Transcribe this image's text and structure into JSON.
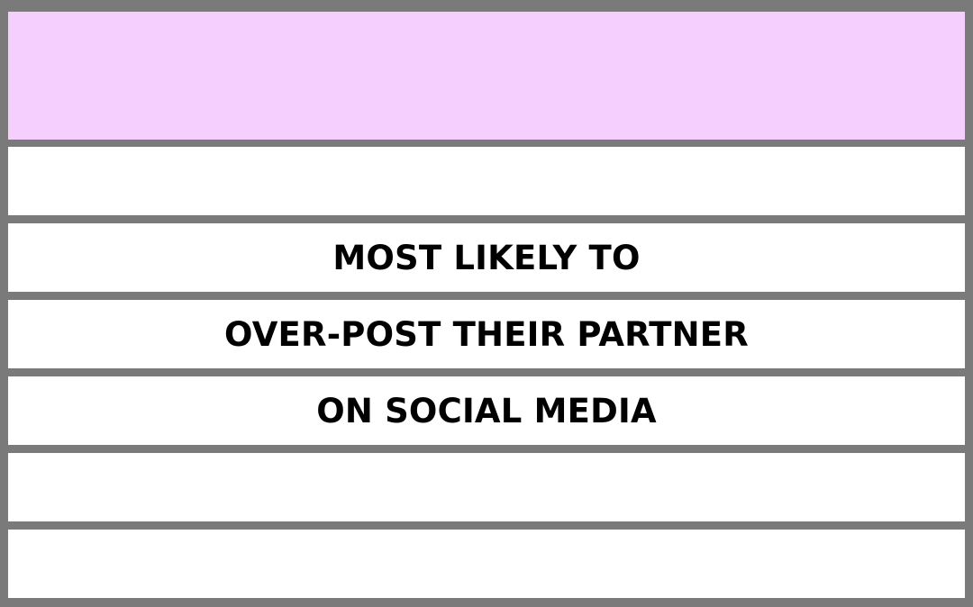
{
  "colors": {
    "border": "#7a7a7a",
    "header_fill": "#f5d0fe",
    "row_fill": "#ffffff",
    "text": "#000000"
  },
  "rows": [
    {
      "text": ""
    },
    {
      "text": ""
    },
    {
      "text": "MOST LIKELY TO"
    },
    {
      "text": "OVER-POST THEIR PARTNER"
    },
    {
      "text": "ON SOCIAL MEDIA"
    },
    {
      "text": ""
    },
    {
      "text": ""
    }
  ]
}
